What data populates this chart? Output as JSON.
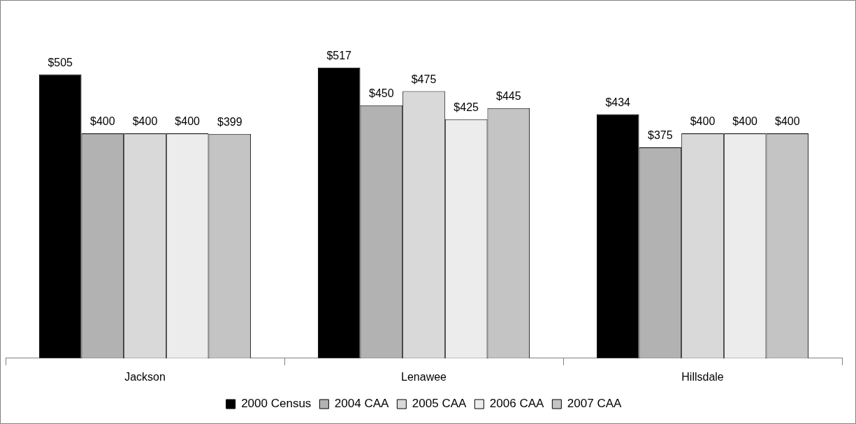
{
  "chart_data": {
    "type": "bar",
    "categories": [
      "Jackson",
      "Lenawee",
      "Hillsdale"
    ],
    "series": [
      {
        "name": "2000 Census",
        "color": "#000000",
        "values": [
          505,
          517,
          434
        ],
        "value_labels": [
          "$505",
          "$517",
          "$434"
        ]
      },
      {
        "name": "2004 CAA",
        "color": "#b2b2b2",
        "values": [
          400,
          450,
          375
        ],
        "value_labels": [
          "$400",
          "$450",
          "$375"
        ]
      },
      {
        "name": "2005 CAA",
        "color": "#d9d9d9",
        "values": [
          400,
          475,
          400
        ],
        "value_labels": [
          "$400",
          "$475",
          "$400"
        ]
      },
      {
        "name": "2006 CAA",
        "color": "#ececec",
        "values": [
          400,
          425,
          400
        ],
        "value_labels": [
          "$400",
          "$425",
          "$400"
        ]
      },
      {
        "name": "2007 CAA",
        "color": "#c4c4c4",
        "values": [
          399,
          445,
          400
        ],
        "value_labels": [
          "$399",
          "$445",
          "$400"
        ]
      }
    ],
    "grid": false,
    "legend": "bottom",
    "tick_labels": "x"
  }
}
